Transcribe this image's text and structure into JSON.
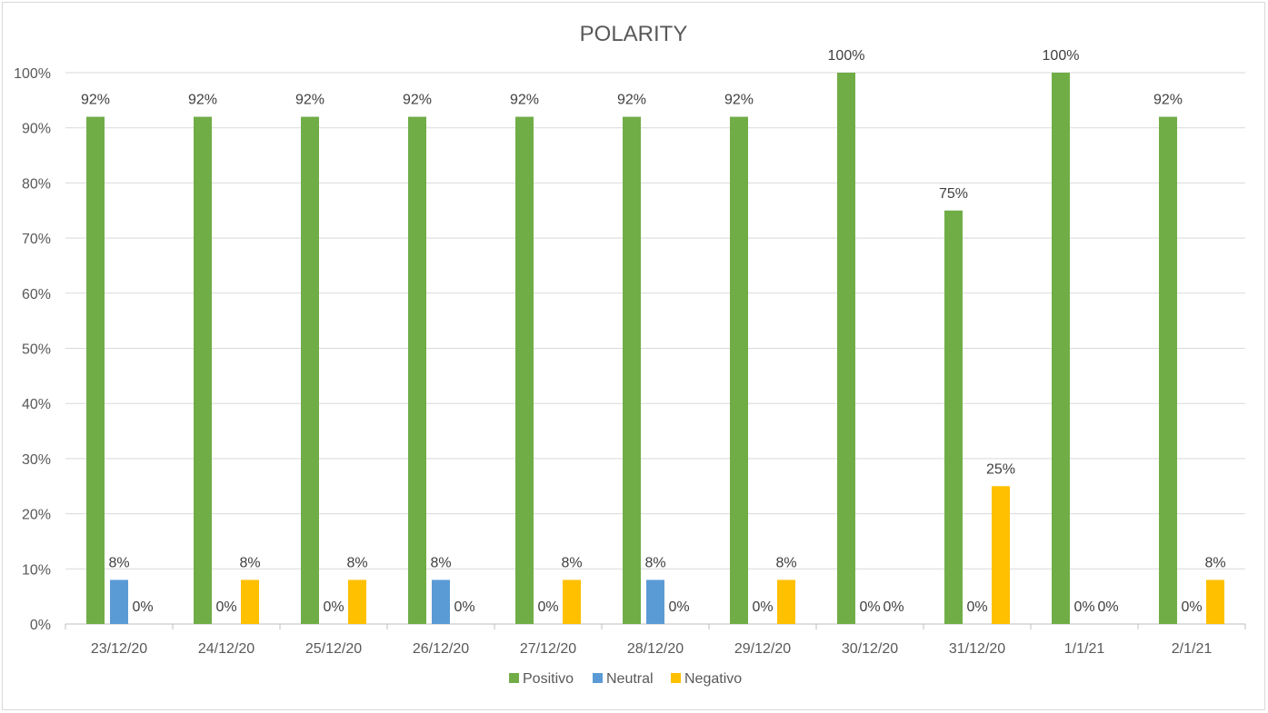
{
  "chart_data": {
    "type": "bar",
    "title": "POLARITY",
    "xlabel": "",
    "ylabel": "",
    "ylim": [
      0,
      100
    ],
    "y_ticks": [
      0,
      10,
      20,
      30,
      40,
      50,
      60,
      70,
      80,
      90,
      100
    ],
    "y_tick_format": "percent",
    "grid": true,
    "legend_position": "bottom",
    "categories": [
      "23/12/20",
      "24/12/20",
      "25/12/20",
      "26/12/20",
      "27/12/20",
      "28/12/20",
      "29/12/20",
      "30/12/20",
      "31/12/20",
      "1/1/21",
      "2/1/21"
    ],
    "series": [
      {
        "name": "Positivo",
        "color": "#70ad47",
        "values": [
          92,
          92,
          92,
          92,
          92,
          92,
          92,
          100,
          75,
          100,
          92
        ],
        "labels": [
          "92%",
          "92%",
          "92%",
          "92%",
          "92%",
          "92%",
          "92%",
          "100%",
          "75%",
          "100%",
          "92%"
        ]
      },
      {
        "name": "Neutral",
        "color": "#5b9bd5",
        "values": [
          8,
          0,
          0,
          8,
          0,
          8,
          0,
          0,
          0,
          0,
          0
        ],
        "labels": [
          "8%",
          "0%",
          "0%",
          "8%",
          "0%",
          "8%",
          "0%",
          "0%",
          "0%",
          "0%",
          "0%"
        ]
      },
      {
        "name": "Negativo",
        "color": "#ffc000",
        "values": [
          0,
          8,
          8,
          0,
          8,
          0,
          8,
          0,
          25,
          0,
          8
        ],
        "labels": [
          "0%",
          "8%",
          "8%",
          "0%",
          "8%",
          "0%",
          "8%",
          "0%",
          "25%",
          "0%",
          "8%"
        ]
      }
    ]
  }
}
